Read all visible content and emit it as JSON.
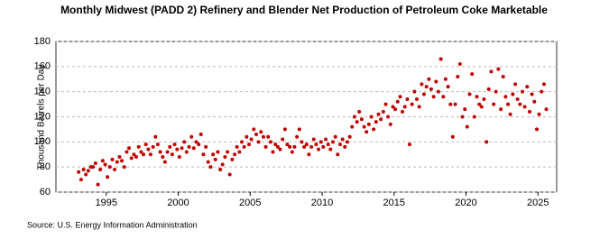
{
  "chart_data": {
    "type": "scatter",
    "title": "Monthly Midwest (PADD 2) Refinery and Blender Net Production of Petroleum Coke Marketable",
    "y_label": "Thousand Barrels per Day",
    "source": "Source: U.S. Energy Information Administration",
    "color": "#c00000",
    "grid": true,
    "xlim": [
      1991.5,
      2026.3
    ],
    "ylim": [
      60,
      180
    ],
    "xticks": [
      1995,
      2000,
      2005,
      2010,
      2015,
      2020,
      2025
    ],
    "yticks": [
      60,
      80,
      100,
      120,
      140,
      160,
      180
    ],
    "series": [
      {
        "name": "Petroleum Coke Marketable",
        "color": "#c00000",
        "x": [
          1993.08,
          1993.25,
          1993.42,
          1993.58,
          1993.75,
          1993.92,
          1994.08,
          1994.25,
          1994.42,
          1994.58,
          1994.75,
          1994.92,
          1995.08,
          1995.25,
          1995.42,
          1995.58,
          1995.75,
          1995.92,
          1996.08,
          1996.25,
          1996.42,
          1996.58,
          1996.75,
          1996.92,
          1997.08,
          1997.25,
          1997.42,
          1997.58,
          1997.75,
          1997.92,
          1998.08,
          1998.25,
          1998.42,
          1998.58,
          1998.75,
          1998.92,
          1999.08,
          1999.25,
          1999.42,
          1999.58,
          1999.75,
          1999.92,
          2000.08,
          2000.25,
          2000.42,
          2000.58,
          2000.75,
          2000.92,
          2001.08,
          2001.25,
          2001.42,
          2001.58,
          2001.75,
          2001.92,
          2002.08,
          2002.25,
          2002.42,
          2002.58,
          2002.75,
          2002.92,
          2003.08,
          2003.25,
          2003.42,
          2003.58,
          2003.75,
          2003.92,
          2004.08,
          2004.25,
          2004.42,
          2004.58,
          2004.75,
          2004.92,
          2005.08,
          2005.25,
          2005.42,
          2005.58,
          2005.75,
          2005.92,
          2006.08,
          2006.25,
          2006.42,
          2006.58,
          2006.75,
          2006.92,
          2007.08,
          2007.25,
          2007.42,
          2007.58,
          2007.75,
          2007.92,
          2008.08,
          2008.25,
          2008.42,
          2008.58,
          2008.75,
          2008.92,
          2009.08,
          2009.25,
          2009.42,
          2009.58,
          2009.75,
          2009.92,
          2010.08,
          2010.25,
          2010.42,
          2010.58,
          2010.75,
          2010.92,
          2011.08,
          2011.25,
          2011.42,
          2011.58,
          2011.75,
          2011.92,
          2012.08,
          2012.25,
          2012.42,
          2012.58,
          2012.75,
          2012.92,
          2013.08,
          2013.25,
          2013.42,
          2013.58,
          2013.75,
          2013.92,
          2014.08,
          2014.25,
          2014.42,
          2014.58,
          2014.75,
          2014.92,
          2015.08,
          2015.25,
          2015.42,
          2015.58,
          2015.75,
          2015.92,
          2016.08,
          2016.25,
          2016.42,
          2016.58,
          2016.75,
          2016.92,
          2017.08,
          2017.25,
          2017.42,
          2017.58,
          2017.75,
          2017.92,
          2018.08,
          2018.25,
          2018.42,
          2018.58,
          2018.75,
          2018.92,
          2019.08,
          2019.25,
          2019.42,
          2019.58,
          2019.75,
          2019.92,
          2020.08,
          2020.25,
          2020.42,
          2020.58,
          2020.75,
          2020.92,
          2021.08,
          2021.25,
          2021.42,
          2021.58,
          2021.75,
          2021.92,
          2022.08,
          2022.25,
          2022.42,
          2022.58,
          2022.75,
          2022.92,
          2023.08,
          2023.25,
          2023.42,
          2023.58,
          2023.75,
          2023.92,
          2024.08,
          2024.25,
          2024.42,
          2024.58,
          2024.75,
          2024.92,
          2025.08,
          2025.25,
          2025.42,
          2025.58
        ],
        "values": [
          76,
          70,
          78,
          74,
          77,
          80,
          80,
          83,
          66,
          78,
          85,
          82,
          72,
          80,
          86,
          78,
          84,
          88,
          85,
          80,
          92,
          95,
          87,
          90,
          88,
          96,
          92,
          90,
          98,
          94,
          90,
          96,
          104,
          98,
          92,
          88,
          84,
          92,
          96,
          90,
          98,
          94,
          88,
          95,
          100,
          92,
          96,
          104,
          95,
          100,
          98,
          106,
          90,
          96,
          84,
          80,
          90,
          86,
          92,
          78,
          82,
          88,
          92,
          74,
          86,
          90,
          96,
          92,
          100,
          96,
          104,
          98,
          102,
          110,
          106,
          100,
          108,
          104,
          96,
          104,
          100,
          92,
          98,
          96,
          94,
          102,
          110,
          98,
          96,
          92,
          96,
          104,
          110,
          100,
          96,
          98,
          90,
          96,
          102,
          98,
          94,
          100,
          96,
          102,
          98,
          94,
          100,
          104,
          90,
          98,
          102,
          96,
          100,
          104,
          112,
          120,
          116,
          124,
          118,
          112,
          108,
          114,
          120,
          110,
          116,
          122,
          118,
          124,
          130,
          120,
          114,
          128,
          126,
          132,
          136,
          124,
          128,
          134,
          98,
          130,
          140,
          134,
          128,
          146,
          138,
          144,
          150,
          142,
          136,
          148,
          140,
          166,
          136,
          150,
          144,
          130,
          104,
          130,
          152,
          162,
          120,
          126,
          112,
          138,
          154,
          120,
          136,
          130,
          128,
          134,
          100,
          142,
          156,
          130,
          140,
          158,
          126,
          152,
          136,
          130,
          122,
          138,
          146,
          134,
          130,
          140,
          128,
          144,
          124,
          138,
          132,
          110,
          122,
          140,
          146,
          126
        ]
      }
    ]
  }
}
